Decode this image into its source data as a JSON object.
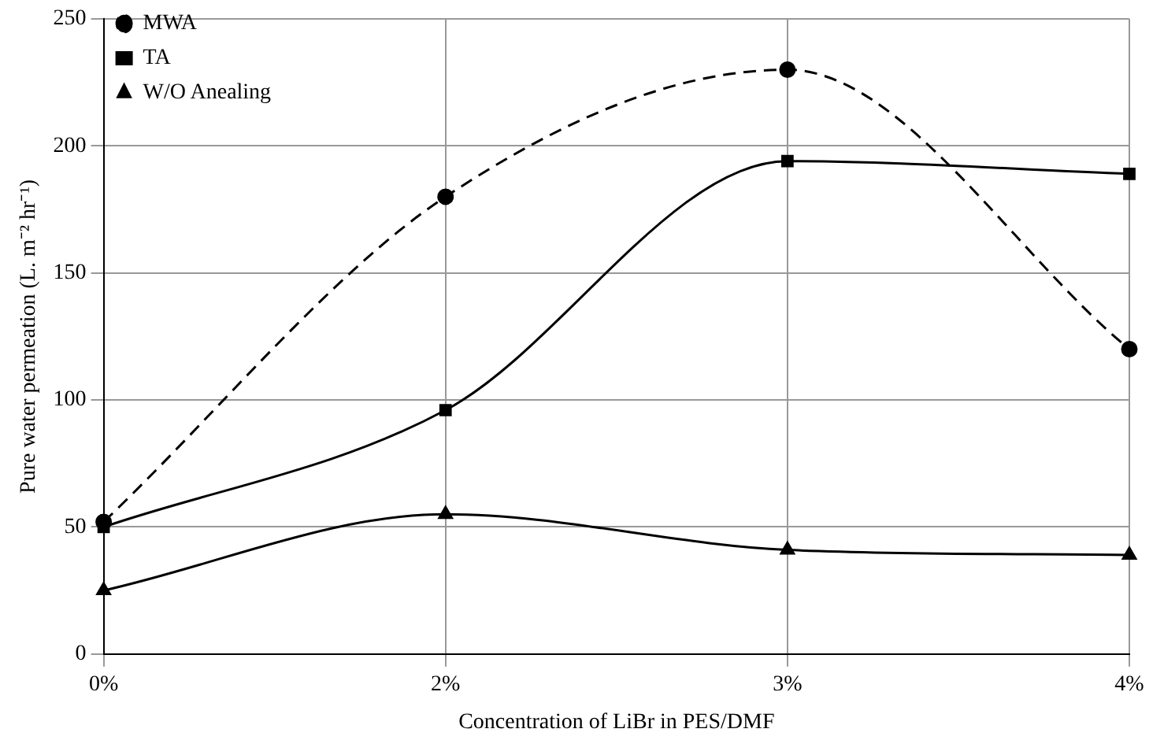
{
  "chart_data": {
    "type": "line",
    "xlabel": "Concentration of LiBr in PES/DMF",
    "ylabel": "Pure water permeation (L. m⁻² hr⁻¹)",
    "categories": [
      "0%",
      "2%",
      "3%",
      "4%"
    ],
    "series": [
      {
        "name": "MWA",
        "color": "#000000",
        "values": [
          52,
          180,
          230,
          120
        ],
        "marker": "circle",
        "line_style": "dashed"
      },
      {
        "name": "TA",
        "color": "#000000",
        "values": [
          50,
          96,
          194,
          189
        ],
        "marker": "square",
        "line_style": "solid"
      },
      {
        "name": "W/O Anealing",
        "color": "#000000",
        "values": [
          25,
          55,
          41,
          39
        ],
        "marker": "triangle",
        "line_style": "solid"
      }
    ],
    "ylim": [
      0,
      250
    ],
    "yticks": [
      0,
      50,
      100,
      150,
      200,
      250
    ],
    "grid": true,
    "legend": "top left"
  }
}
